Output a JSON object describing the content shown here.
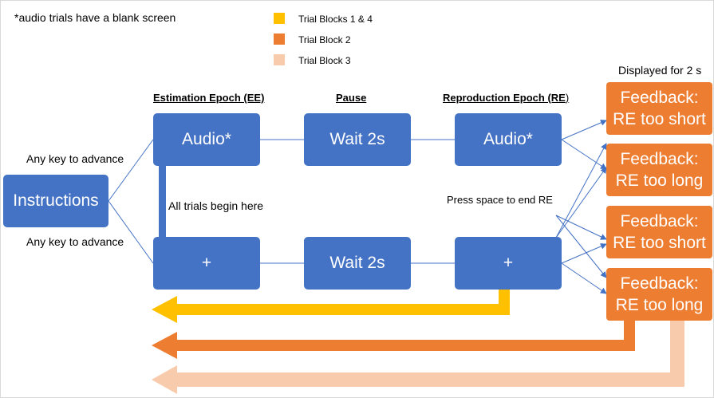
{
  "colors": {
    "box_blue": "#4472c4",
    "line_blue": "#4472c4",
    "feedback_orange": "#ed7d31",
    "block_1_4": "#ffc000",
    "block_2": "#ed7d31",
    "block_3": "#f8cbad"
  },
  "note": "*audio trials have a blank screen",
  "legend": [
    {
      "label": "Trial Blocks 1 & 4"
    },
    {
      "label": "Trial Block 2"
    },
    {
      "label": "Trial Block 3"
    }
  ],
  "headers": {
    "estimation": "Estimation Epoch (EE)",
    "pause": "Pause",
    "reproduction": "Reproduction Epoch (RE",
    "reproduction_paren": ")",
    "displayed": "Displayed for 2 s"
  },
  "labels": {
    "any_key_top": "Any key to advance",
    "any_key_bottom": "Any key to advance",
    "all_trials_begin": "All trials begin here",
    "press_space": "Press space to end RE"
  },
  "boxes": {
    "instructions": "Instructions",
    "ee_audio": "Audio*",
    "pause_top": "Wait 2s",
    "re_audio": "Audio*",
    "ee_cross": "+",
    "pause_bottom": "Wait 2s",
    "re_cross": "+"
  },
  "feedback": [
    {
      "line1": "Feedback:",
      "line2": "RE too short"
    },
    {
      "line1": "Feedback:",
      "line2": "RE too long"
    },
    {
      "line1": "Feedback:",
      "line2": "RE too short"
    },
    {
      "line1": "Feedback:",
      "line2": "RE too long"
    }
  ]
}
